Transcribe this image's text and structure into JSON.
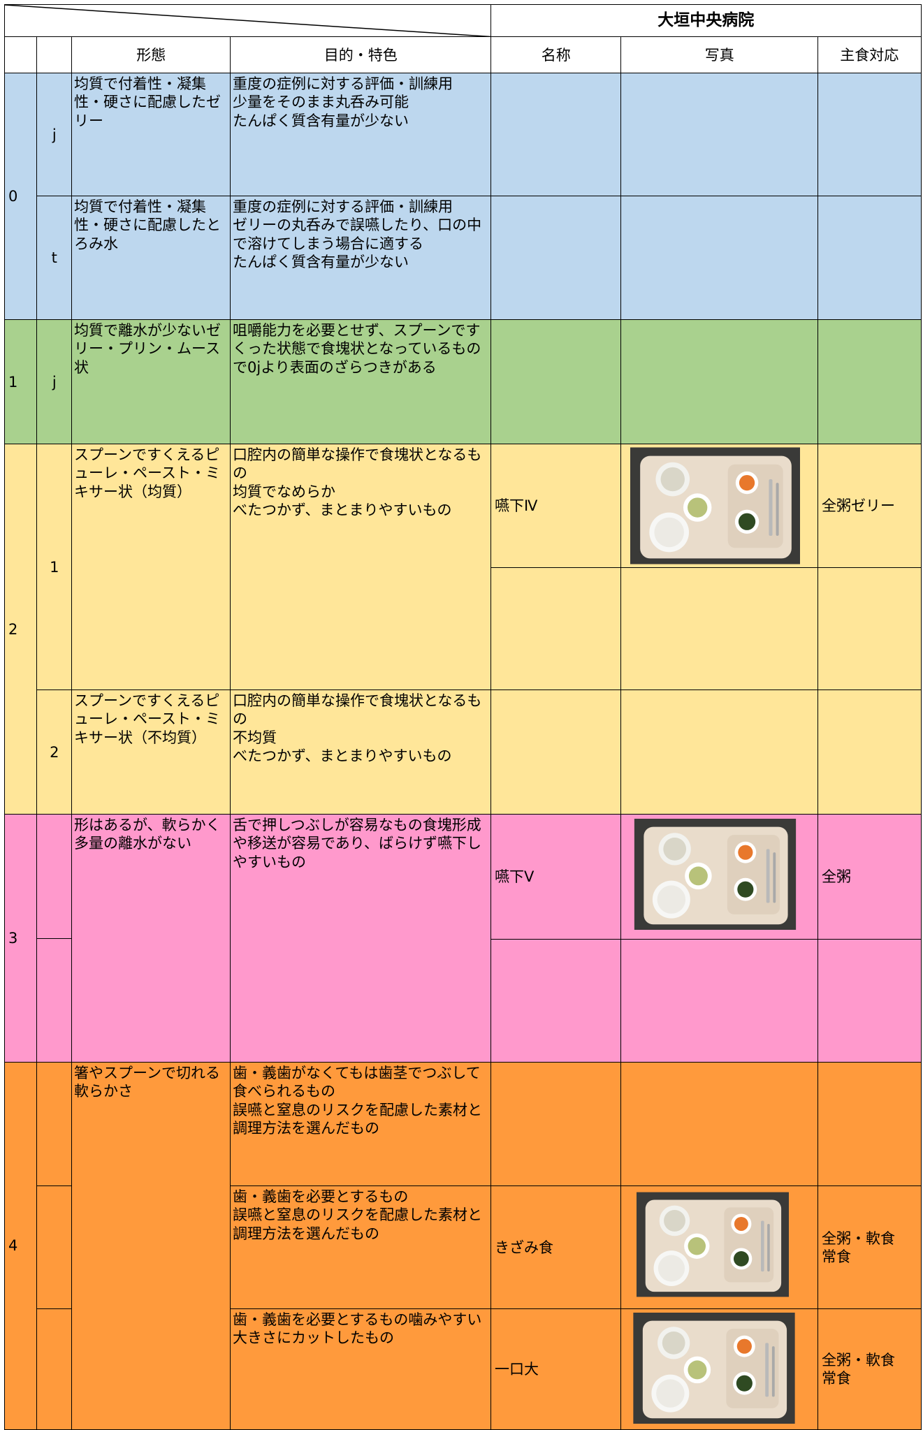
{
  "header": {
    "hospital": "大垣中央病院",
    "columns": [
      "形態",
      "目的・特色",
      "名称",
      "写真",
      "主食対応"
    ]
  },
  "levels": [
    "0",
    "1",
    "2",
    "3",
    "4"
  ],
  "sublevels": [
    "j",
    "t",
    "j",
    "1",
    "2"
  ],
  "forms": [
    "均質で付着性・凝集性・硬さに配慮したゼリー",
    "均質で付着性・凝集性・硬さに配慮したとろみ水",
    "均質で離水が少ないゼリー・プリン・ムース状",
    "スプーンですくえるピューレ・ペースト・ミキサー状（均質）",
    "スプーンですくえるピューレ・ペースト・ミキサー状（不均質）",
    "形はあるが、軟らかく多量の離水がない",
    "箸やスプーンで切れる軟らかさ"
  ],
  "purposes": [
    [
      "重度の症例に対する評価・訓練用",
      "少量をそのまま丸呑み可能",
      "たんぱく質含有量が少ない"
    ],
    [
      "重度の症例に対する評価・訓練用",
      "ゼリーの丸呑みで誤嚥したり、口の中で溶けてしまう場合に適する",
      "たんぱく質含有量が少ない"
    ],
    [
      "咀嚼能力を必要とせず、スプーンですくった状態で食塊状となっているもので0jより表面のざらつきがある"
    ],
    [
      "口腔内の簡単な操作で食塊状となるもの",
      "均質でなめらか",
      "べたつかず、まとまりやすいもの"
    ],
    [
      "口腔内の簡単な操作で食塊状となるもの",
      "不均質",
      "べたつかず、まとまりやすいもの"
    ],
    [
      "舌で押しつぶしが容易なもの食塊形成や移送が容易であり、ばらけず嚥下しやすいもの"
    ],
    [
      "歯・義歯がなくてもは歯茎でつぶして食べられるもの",
      "誤嚥と窒息のリスクを配慮した素材と調理方法を選んだもの"
    ],
    [
      "歯・義歯を必要とするもの",
      "誤嚥と窒息のリスクを配慮した素材と調理方法を選んだもの"
    ],
    [
      "歯・義歯を必要とするもの噛みやすい大きさにカットしたもの"
    ]
  ],
  "meals": [
    {
      "name": "嚥下Ⅳ",
      "staple": [
        "全粥ゼリー"
      ]
    },
    {
      "name": "嚥下Ⅴ",
      "staple": [
        "全粥"
      ]
    },
    {
      "name": "きざみ食",
      "staple": [
        "全粥・軟食",
        "常食"
      ]
    },
    {
      "name": "一口大",
      "staple": [
        "全粥・軟食",
        "常食"
      ]
    }
  ]
}
